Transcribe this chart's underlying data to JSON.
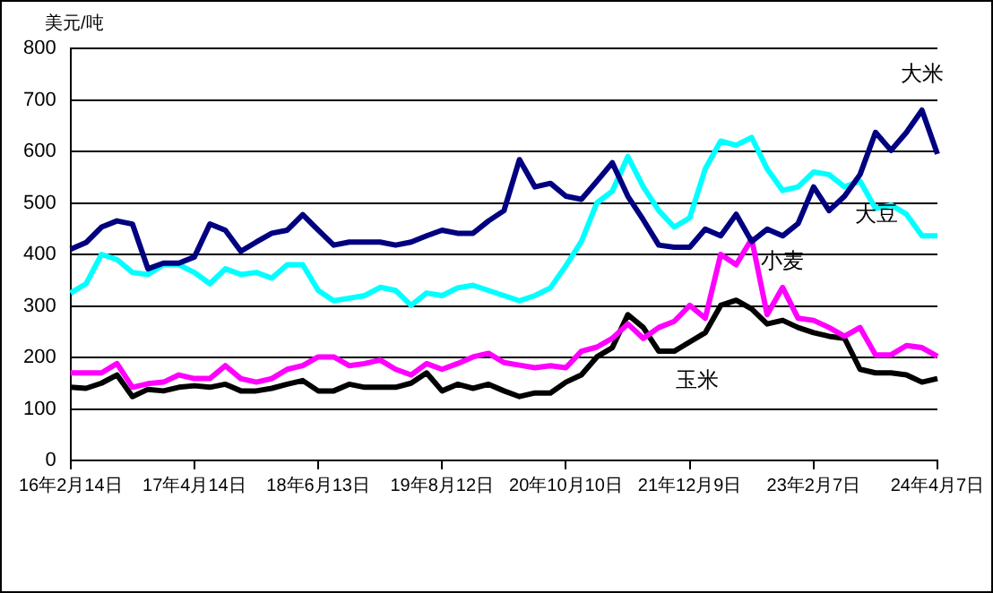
{
  "chart_data": {
    "type": "line",
    "ylabel": "美元/吨",
    "categories": [
      "16年2月14日",
      null,
      null,
      null,
      null,
      null,
      null,
      null,
      "17年4月14日",
      null,
      null,
      null,
      null,
      null,
      null,
      null,
      "18年6月13日",
      null,
      null,
      null,
      null,
      null,
      null,
      null,
      "19年8月12日",
      null,
      null,
      null,
      null,
      null,
      null,
      null,
      "20年10月10日",
      null,
      null,
      null,
      null,
      null,
      null,
      null,
      "21年12月9日",
      null,
      null,
      null,
      null,
      null,
      null,
      null,
      "23年2月7日",
      null,
      null,
      null,
      null,
      null,
      null,
      null,
      "24年4月7日"
    ],
    "series": [
      {
        "name": "大米",
        "color": "#000080",
        "values": [
          410,
          423,
          453,
          465,
          459,
          372,
          383,
          383,
          395,
          459,
          447,
          406,
          424,
          441,
          447,
          477,
          447,
          418,
          424,
          424,
          424,
          418,
          424,
          436,
          447,
          441,
          441,
          465,
          485,
          584,
          531,
          538,
          513,
          507,
          542,
          578,
          513,
          467,
          418,
          414,
          414,
          449,
          436,
          478,
          425,
          449,
          436,
          460,
          531,
          485,
          513,
          555,
          637,
          602,
          637,
          680,
          595
        ]
      },
      {
        "name": "大豆",
        "color": "#00ffff",
        "values": [
          325,
          343,
          400,
          390,
          365,
          361,
          380,
          380,
          365,
          343,
          372,
          361,
          365,
          354,
          380,
          380,
          330,
          310,
          315,
          320,
          336,
          330,
          301,
          325,
          320,
          335,
          340,
          330,
          320,
          310,
          320,
          335,
          378,
          425,
          500,
          523,
          590,
          531,
          485,
          453,
          471,
          566,
          620,
          612,
          627,
          566,
          524,
          531,
          560,
          555,
          531,
          542,
          489,
          496,
          478,
          436,
          436
        ]
      },
      {
        "name": "小麦",
        "color": "#ff00ff",
        "values": [
          170,
          170,
          170,
          188,
          142,
          149,
          152,
          166,
          159,
          159,
          184,
          159,
          152,
          159,
          177,
          184,
          201,
          201,
          184,
          188,
          195,
          177,
          166,
          188,
          177,
          188,
          201,
          208,
          190,
          185,
          180,
          184,
          180,
          212,
          220,
          237,
          265,
          237,
          258,
          270,
          301,
          276,
          400,
          380,
          430,
          283,
          336,
          276,
          272,
          258,
          241,
          258,
          205,
          205,
          223,
          219,
          202
        ]
      },
      {
        "name": "玉米",
        "color": "#000000",
        "values": [
          142,
          140,
          150,
          166,
          124,
          138,
          135,
          142,
          145,
          142,
          148,
          135,
          135,
          140,
          148,
          155,
          135,
          135,
          148,
          142,
          142,
          142,
          150,
          170,
          135,
          148,
          140,
          148,
          135,
          124,
          131,
          131,
          152,
          166,
          201,
          219,
          283,
          258,
          212,
          212,
          230,
          248,
          301,
          311,
          294,
          265,
          272,
          258,
          248,
          241,
          237,
          177,
          170,
          170,
          166,
          152,
          159
        ]
      }
    ],
    "ylim": [
      0,
      800
    ],
    "yticks": [
      0,
      100,
      200,
      300,
      400,
      500,
      600,
      700,
      800
    ],
    "grid": "y",
    "legend": false
  }
}
